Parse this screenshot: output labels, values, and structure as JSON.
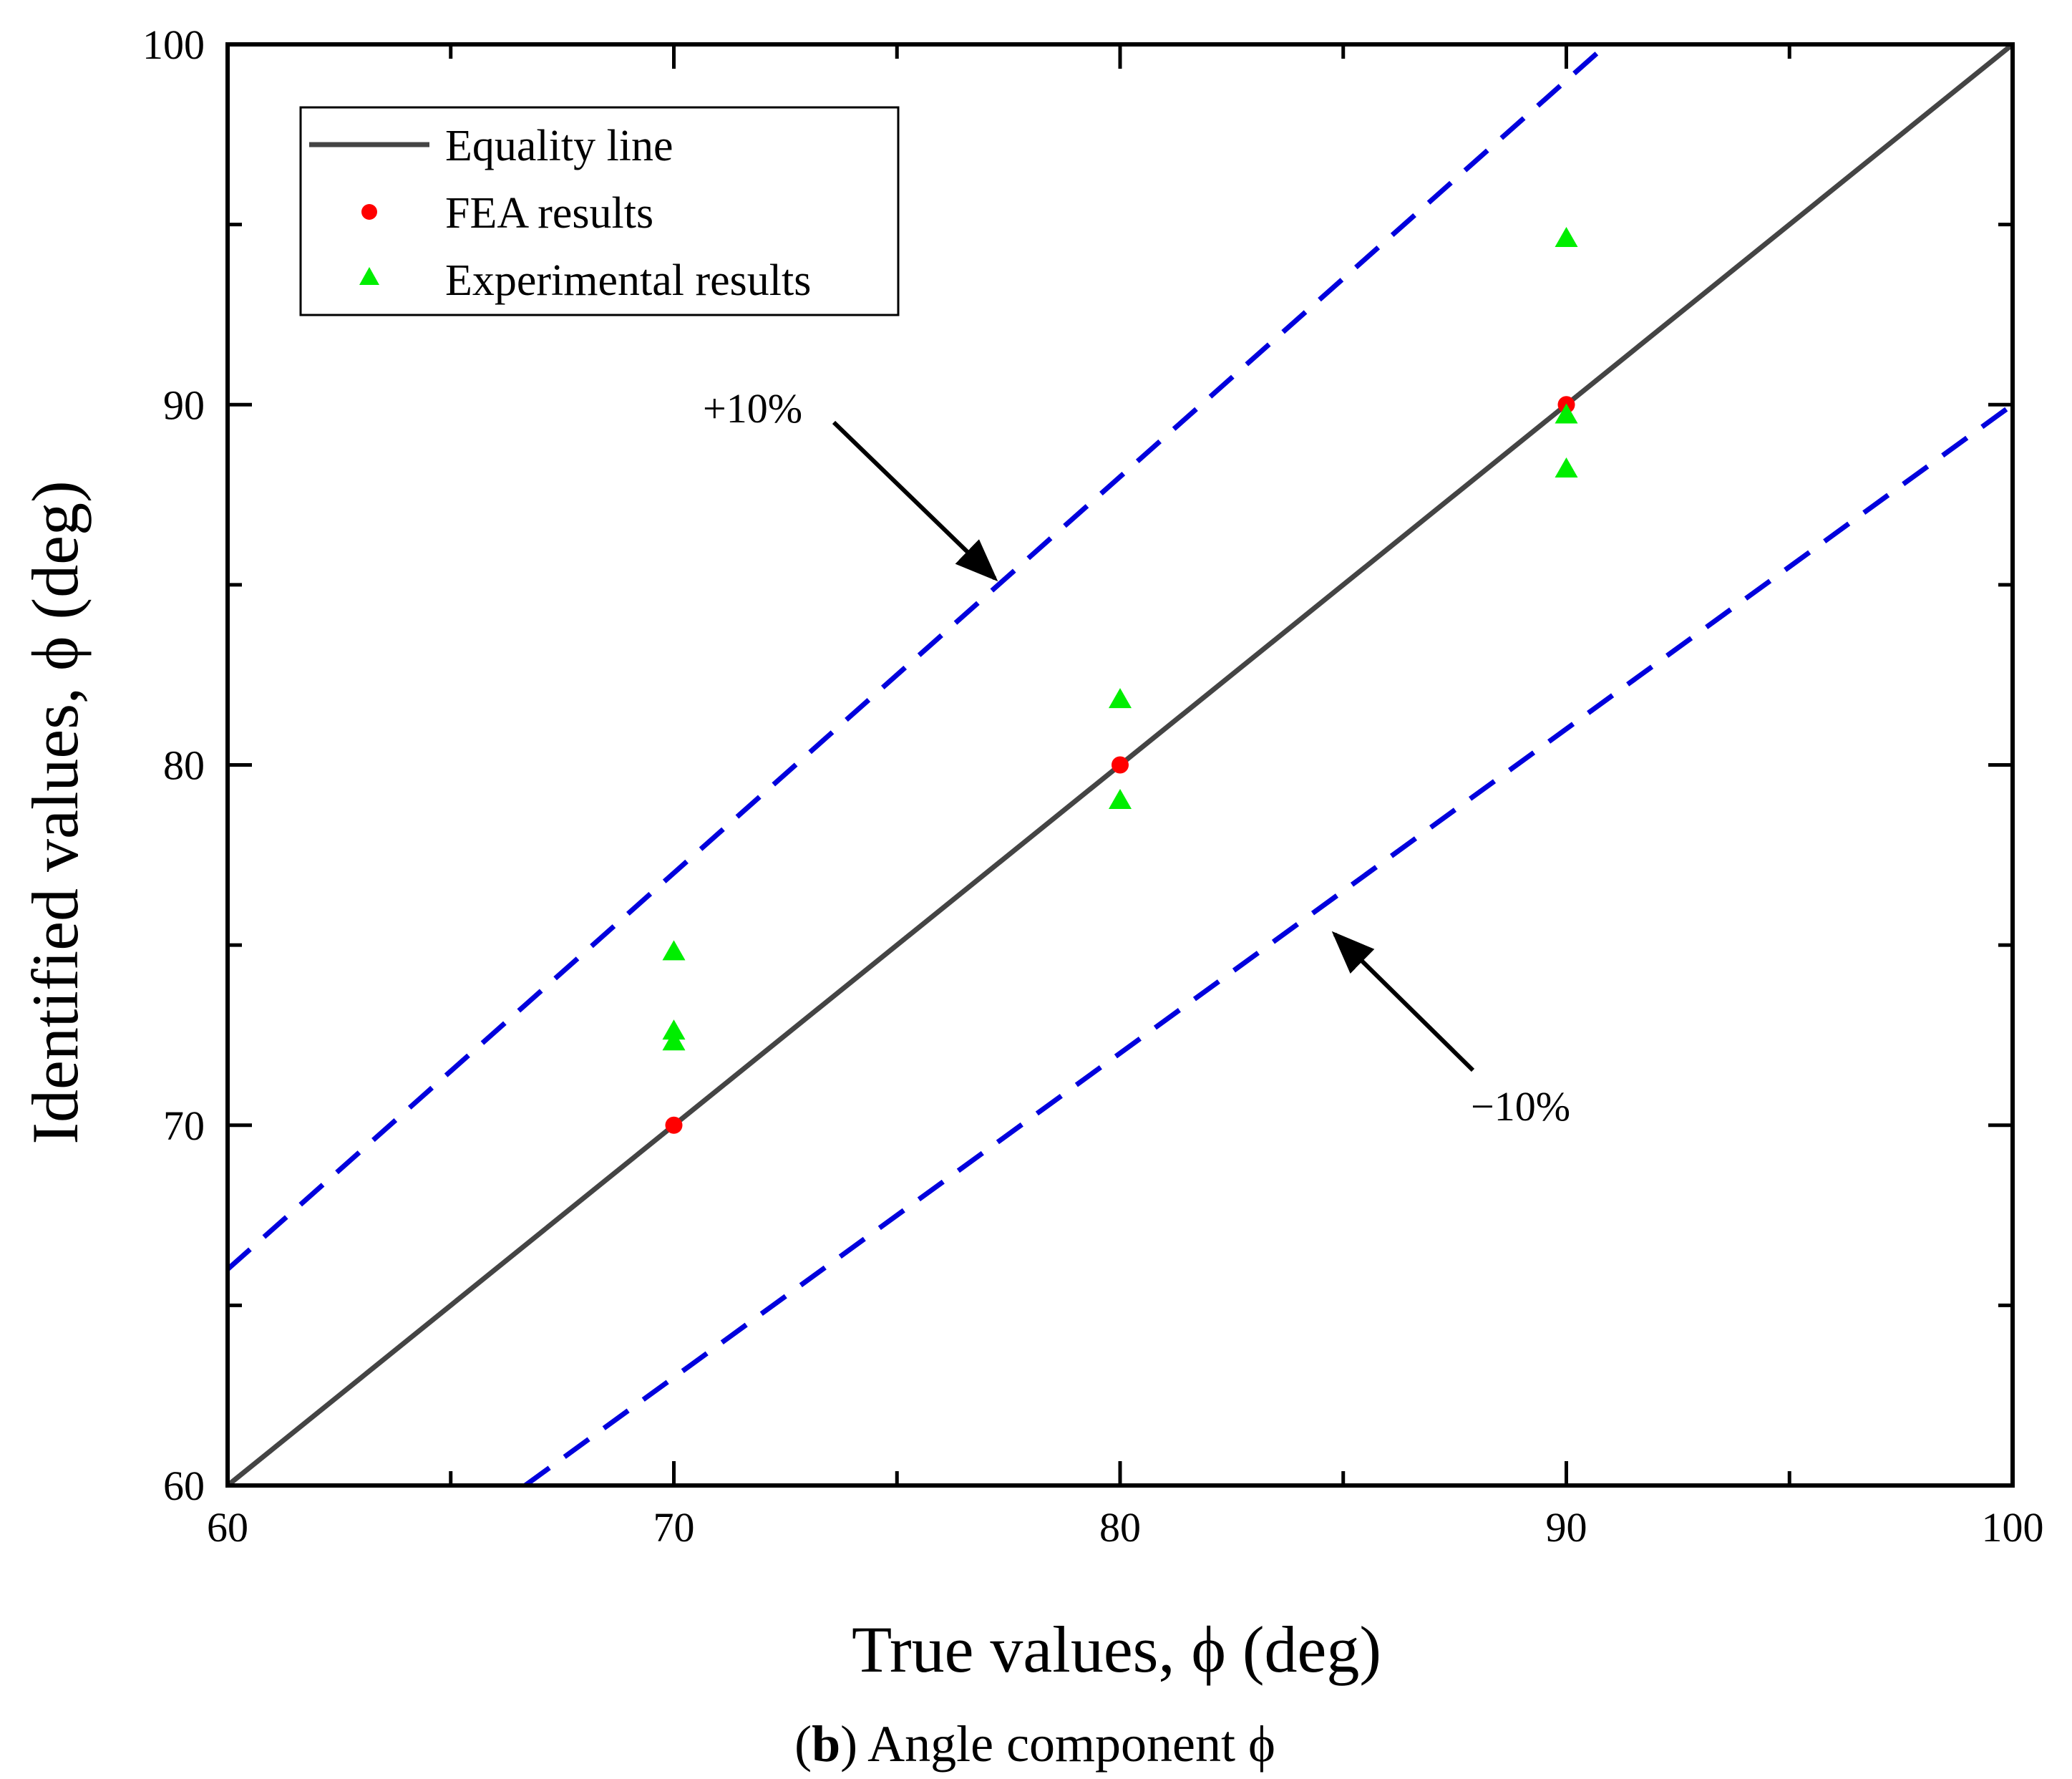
{
  "chart_data": {
    "type": "scatter",
    "title": "",
    "xlabel": "True values,  ϕ (deg)",
    "ylabel": "Identified values,  ϕ (deg)",
    "xlim": [
      60,
      100
    ],
    "ylim": [
      60,
      100
    ],
    "xticks": [
      60,
      70,
      80,
      90,
      100
    ],
    "yticks": [
      60,
      70,
      80,
      90,
      100
    ],
    "x_tick_labels": [
      "60",
      "70",
      "80",
      "90",
      "100"
    ],
    "y_tick_labels": [
      "60",
      "70",
      "80",
      "90",
      "100"
    ],
    "grid": false,
    "legend_position": "top-left",
    "series": [
      {
        "name": "Equality line",
        "kind": "line",
        "color": "#444444",
        "x": [
          60,
          100
        ],
        "y": [
          60,
          100
        ]
      },
      {
        "name": "FEA results",
        "kind": "scatter",
        "marker": "circle",
        "color": "#ff0000",
        "x": [
          70,
          80,
          90
        ],
        "y": [
          70,
          80,
          90
        ]
      },
      {
        "name": "Experimental results",
        "kind": "scatter",
        "marker": "triangle",
        "color": "#00ee00",
        "x": [
          70,
          70,
          70,
          80,
          80,
          90,
          90,
          90
        ],
        "y": [
          74.8,
          72.6,
          72.3,
          81.8,
          79.0,
          94.6,
          89.7,
          88.2
        ]
      }
    ],
    "bounds": [
      {
        "name": "+10%",
        "factor": 1.1,
        "color": "#0000dd",
        "style": "dashed"
      },
      {
        "name": "−10%",
        "factor": 0.9,
        "color": "#0000dd",
        "style": "dashed"
      }
    ],
    "annotations": [
      {
        "text": "+10%",
        "points_to": "upper bound line"
      },
      {
        "text": "−10%",
        "points_to": "lower bound line"
      }
    ]
  },
  "caption": {
    "label": "b",
    "text": " Angle component ϕ"
  }
}
